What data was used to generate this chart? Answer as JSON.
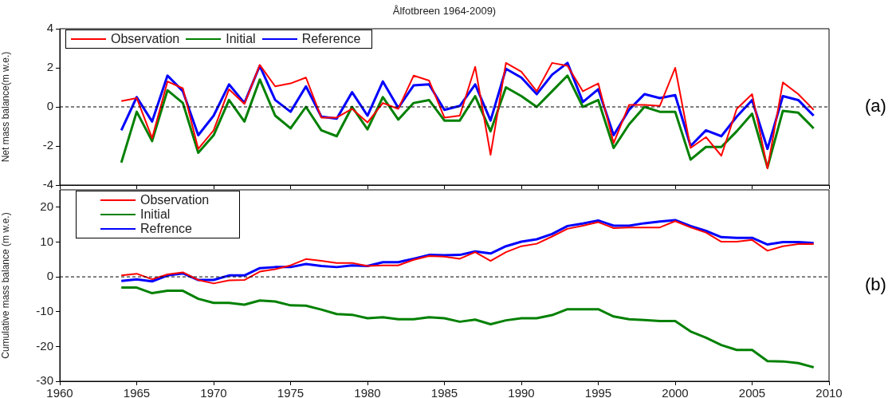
{
  "chart_data": [
    {
      "type": "line",
      "title": "Ålfotbreen 1964-2009)",
      "ylabel": "Net mass balance(m w.e.)",
      "annotations": [
        "(a)"
      ],
      "x": [
        1964,
        1965,
        1966,
        1967,
        1968,
        1969,
        1970,
        1971,
        1972,
        1973,
        1974,
        1975,
        1976,
        1977,
        1978,
        1979,
        1980,
        1981,
        1982,
        1983,
        1984,
        1985,
        1986,
        1987,
        1988,
        1989,
        1990,
        1991,
        1992,
        1993,
        1994,
        1995,
        1996,
        1997,
        1998,
        1999,
        2000,
        2001,
        2002,
        2003,
        2004,
        2005,
        2006,
        2007,
        2008,
        2009
      ],
      "series": [
        {
          "name": "Observation",
          "color": "#ff0000",
          "values": [
            0.3,
            0.45,
            -1.6,
            1.3,
            0.95,
            -2.15,
            -1.2,
            0.9,
            0.15,
            2.15,
            1.05,
            1.2,
            1.5,
            -0.55,
            -0.55,
            -0.1,
            -0.8,
            0.2,
            -0.1,
            1.6,
            1.35,
            -0.55,
            -0.45,
            2.05,
            -2.45,
            2.25,
            1.8,
            0.8,
            2.25,
            2.1,
            0.8,
            1.2,
            -1.85,
            0.1,
            0.1,
            0.05,
            2.0,
            -2.1,
            -1.55,
            -2.5,
            -0.1,
            0.65,
            -3.15,
            1.25,
            0.65,
            -0.15
          ]
        },
        {
          "name": "Initial",
          "color": "#008000",
          "values": [
            -2.85,
            -0.25,
            -1.75,
            0.85,
            0.2,
            -2.35,
            -1.45,
            0.35,
            -0.75,
            1.4,
            -0.45,
            -1.1,
            0,
            -1.2,
            -1.5,
            0,
            -1.15,
            0.5,
            -0.65,
            0.2,
            0.35,
            -0.7,
            -0.7,
            0.55,
            -1.25,
            1.0,
            0.55,
            0,
            0.8,
            1.6,
            0,
            0.35,
            -2.1,
            -0.9,
            0,
            -0.25,
            -0.25,
            -2.7,
            -2.05,
            -2.05,
            -1.25,
            -0.35,
            -3.1,
            -0.2,
            -0.3,
            -1.1
          ]
        },
        {
          "name": "Reference",
          "color": "#0000ff",
          "values": [
            -1.2,
            0.5,
            -0.75,
            1.6,
            0.8,
            -1.45,
            -0.45,
            1.15,
            0.2,
            2.1,
            0.35,
            -0.25,
            1.05,
            -0.5,
            -0.6,
            0.75,
            -0.45,
            1.3,
            -0.05,
            1.1,
            1.15,
            -0.15,
            0.05,
            1.15,
            -0.7,
            1.95,
            1.5,
            0.65,
            1.65,
            2.25,
            0.25,
            0.9,
            -1.45,
            -0.15,
            0.65,
            0.45,
            0.6,
            -2.0,
            -1.2,
            -1.5,
            -0.5,
            0.35,
            -2.15,
            0.55,
            0.35,
            -0.45
          ]
        }
      ],
      "xlim": [
        1960,
        2010
      ],
      "xticks": [
        1960,
        1965,
        1970,
        1975,
        1980,
        1985,
        1990,
        1995,
        2000,
        2005,
        2010
      ],
      "ylim": [
        -4,
        4
      ],
      "yticks": [
        -4,
        -2,
        0,
        2,
        4
      ],
      "ref_lines": [
        {
          "axis": "y",
          "value": 0,
          "line_style": "dashed",
          "color": "#000000"
        }
      ],
      "legend": "top left",
      "tick_labels": "y",
      "grid": false,
      "line_style": "solid",
      "marker": "none"
    },
    {
      "type": "line",
      "ylabel": "Cumulative mass balance (m w.e.)",
      "annotations": [
        "(b)"
      ],
      "x": [
        1964,
        1965,
        1966,
        1967,
        1968,
        1969,
        1970,
        1971,
        1972,
        1973,
        1974,
        1975,
        1976,
        1977,
        1978,
        1979,
        1980,
        1981,
        1982,
        1983,
        1984,
        1985,
        1986,
        1987,
        1988,
        1989,
        1990,
        1991,
        1992,
        1993,
        1994,
        1995,
        1996,
        1997,
        1998,
        1999,
        2000,
        2001,
        2002,
        2003,
        2004,
        2005,
        2006,
        2007,
        2008,
        2009
      ],
      "series": [
        {
          "name": "Observation",
          "color": "#ff0000",
          "values": [
            0.4,
            0.9,
            -0.7,
            0.7,
            1.3,
            -0.9,
            -1.9,
            -1.0,
            -0.9,
            1.5,
            2.2,
            3.3,
            5.1,
            4.6,
            4.0,
            4.0,
            3.1,
            3.3,
            3.3,
            4.9,
            6.0,
            5.8,
            5.2,
            7.1,
            4.6,
            7.1,
            8.8,
            9.5,
            11.6,
            13.8,
            14.7,
            15.7,
            14.0,
            14.2,
            14.2,
            14.2,
            16.0,
            14.2,
            12.7,
            10.1,
            10.1,
            10.6,
            7.5,
            8.8,
            9.4,
            9.4
          ]
        },
        {
          "name": "Initial",
          "color": "#008000",
          "values": [
            -3.1,
            -3.1,
            -4.7,
            -4.0,
            -4.0,
            -6.3,
            -7.5,
            -7.5,
            -8.0,
            -6.8,
            -7.1,
            -8.2,
            -8.3,
            -9.4,
            -10.7,
            -10.9,
            -11.9,
            -11.6,
            -12.2,
            -12.2,
            -11.6,
            -11.9,
            -12.9,
            -12.3,
            -13.6,
            -12.5,
            -11.9,
            -11.9,
            -11.0,
            -9.3,
            -9.3,
            -9.3,
            -11.4,
            -12.2,
            -12.4,
            -12.7,
            -12.7,
            -15.7,
            -17.5,
            -19.6,
            -21.0,
            -21.0,
            -24.2,
            -24.3,
            -24.8,
            -26.0
          ]
        },
        {
          "name": "Refrence",
          "color": "#0000ff",
          "values": [
            -1.2,
            -0.7,
            -1.3,
            0.4,
            1.0,
            -0.9,
            -0.9,
            0.4,
            0.4,
            2.5,
            2.8,
            2.8,
            3.7,
            3.1,
            2.8,
            3.3,
            3.1,
            4.2,
            4.2,
            5.2,
            6.3,
            6.2,
            6.3,
            7.3,
            6.7,
            8.8,
            10.1,
            10.8,
            12.3,
            14.6,
            15.3,
            16.2,
            14.7,
            14.7,
            15.4,
            15.9,
            16.3,
            14.6,
            13.2,
            11.4,
            11.2,
            11.2,
            9.3,
            10.0,
            10.0,
            9.7
          ]
        }
      ],
      "xlim": [
        1960,
        2010
      ],
      "xticks": [
        1960,
        1965,
        1970,
        1975,
        1980,
        1985,
        1990,
        1995,
        2000,
        2005,
        2010
      ],
      "ylim": [
        -30,
        25
      ],
      "yticks": [
        -30,
        -20,
        -10,
        0,
        10,
        20
      ],
      "ref_lines": [
        {
          "axis": "y",
          "value": 0,
          "line_style": "dashed",
          "color": "#000000"
        }
      ],
      "legend": "top left",
      "grid": false,
      "line_style": "solid",
      "marker": "none"
    }
  ]
}
